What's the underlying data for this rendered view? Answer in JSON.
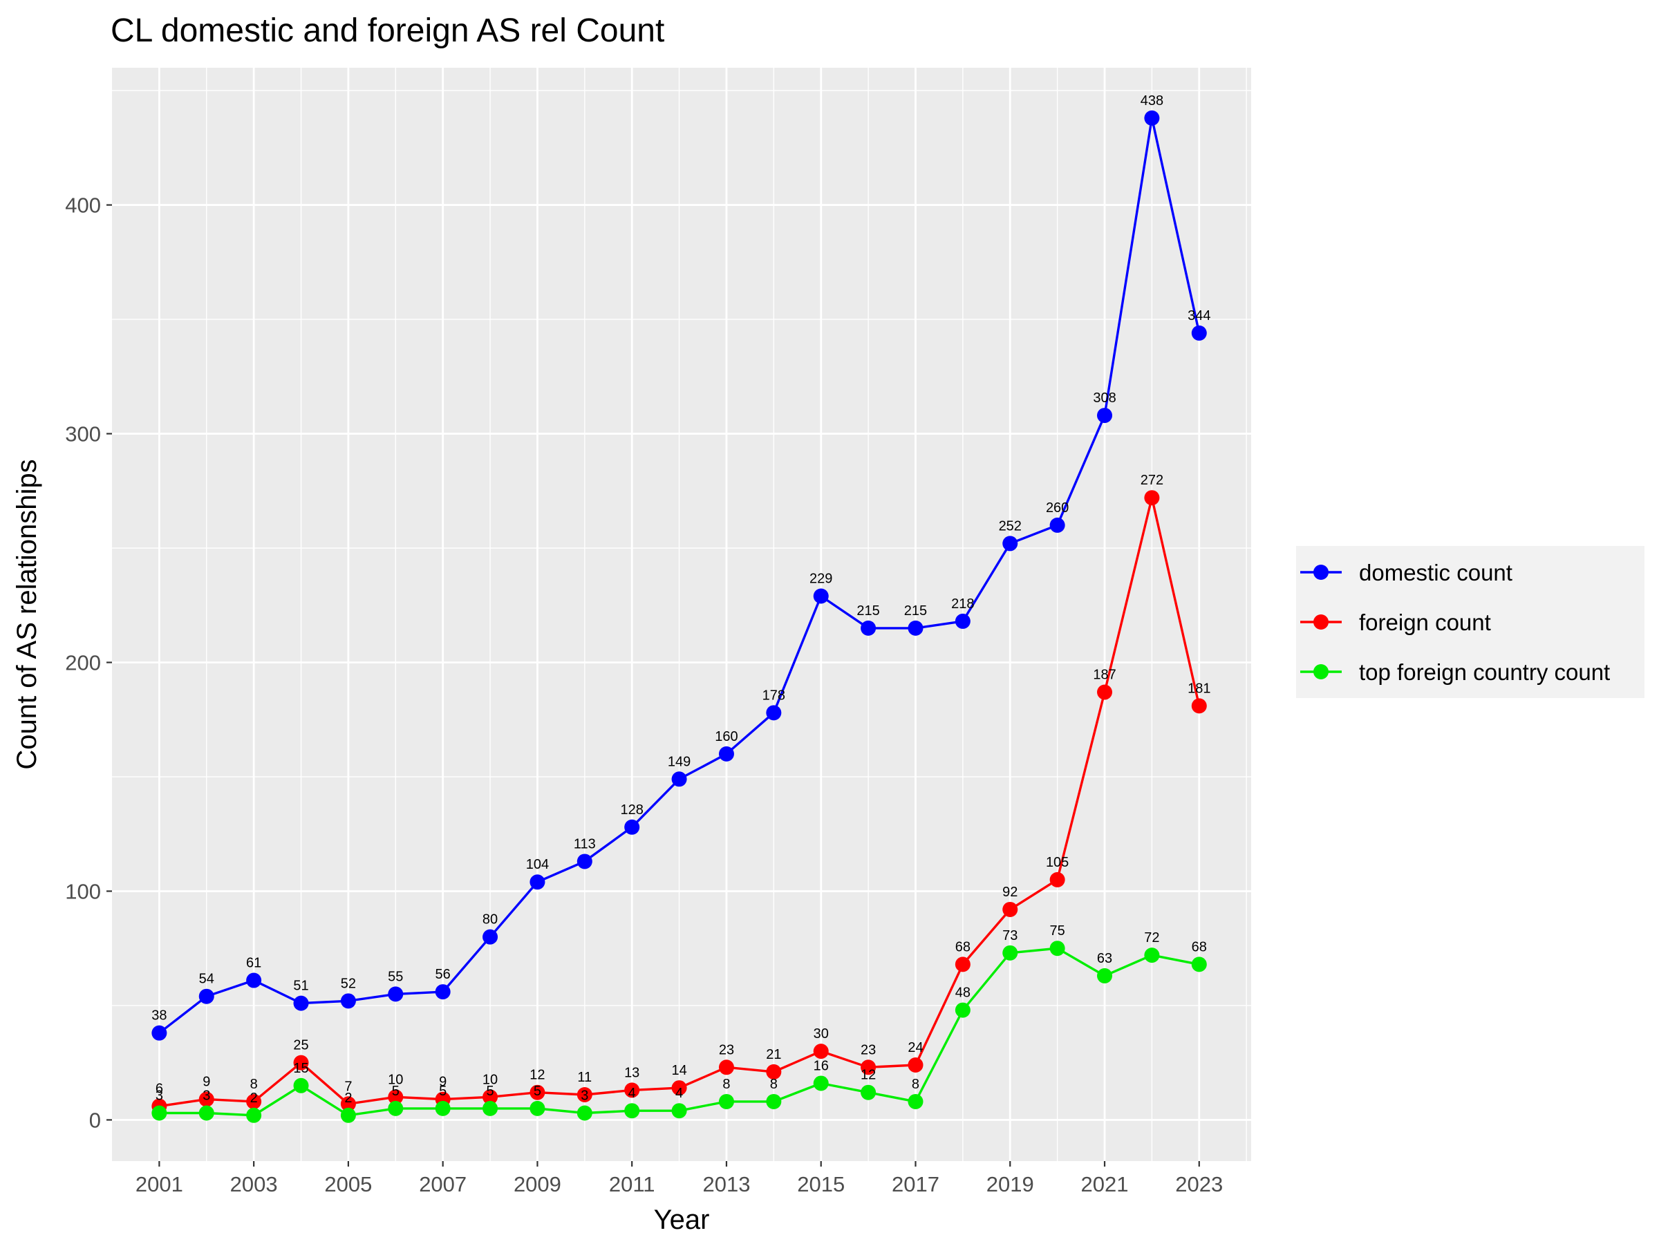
{
  "chart_data": {
    "type": "line",
    "title": "CL domestic and foreign AS rel Count",
    "xlabel": "Year",
    "ylabel": "Count of AS relationships",
    "x": [
      2001,
      2002,
      2003,
      2004,
      2005,
      2006,
      2007,
      2008,
      2009,
      2010,
      2011,
      2012,
      2013,
      2014,
      2015,
      2016,
      2017,
      2018,
      2019,
      2020,
      2021,
      2022,
      2023
    ],
    "x_ticks": [
      2001,
      2003,
      2005,
      2007,
      2009,
      2011,
      2013,
      2015,
      2017,
      2019,
      2021,
      2023
    ],
    "y_ticks": [
      0,
      100,
      200,
      300,
      400
    ],
    "xlim": [
      2000.0,
      2024.1
    ],
    "ylim": [
      -18,
      460
    ],
    "grid": true,
    "legend_position": "right",
    "series": [
      {
        "name": "domestic count",
        "color": "#0000ff",
        "values": [
          38,
          54,
          61,
          51,
          52,
          55,
          56,
          80,
          104,
          113,
          128,
          149,
          160,
          178,
          229,
          215,
          215,
          218,
          252,
          260,
          308,
          438,
          344
        ]
      },
      {
        "name": "foreign count",
        "color": "#ff0000",
        "values": [
          6,
          9,
          8,
          25,
          7,
          10,
          9,
          10,
          12,
          11,
          13,
          14,
          23,
          21,
          30,
          23,
          24,
          68,
          92,
          105,
          187,
          272,
          181
        ]
      },
      {
        "name": "top foreign country count",
        "color": "#00ee00",
        "values": [
          3,
          3,
          2,
          15,
          2,
          5,
          5,
          5,
          5,
          3,
          4,
          4,
          8,
          8,
          16,
          12,
          8,
          48,
          73,
          75,
          63,
          72,
          68
        ]
      }
    ]
  }
}
